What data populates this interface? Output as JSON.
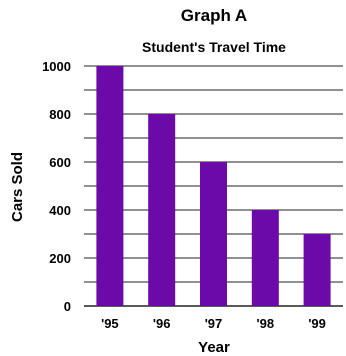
{
  "chart_data": {
    "type": "bar",
    "title": "Graph A",
    "subtitle": "Student's Travel Time",
    "xlabel": "Year",
    "ylabel": "Cars Sold",
    "categories": [
      "'95",
      "'96",
      "'97",
      "'98",
      "'99"
    ],
    "values": [
      1000,
      800,
      600,
      400,
      300
    ],
    "ylim": [
      0,
      1000
    ],
    "yticks": [
      0,
      200,
      400,
      600,
      800,
      1000
    ],
    "minor_grid_step": 100,
    "grid": true,
    "bar_color": "#6b0aa8",
    "grid_color": "#222222"
  }
}
